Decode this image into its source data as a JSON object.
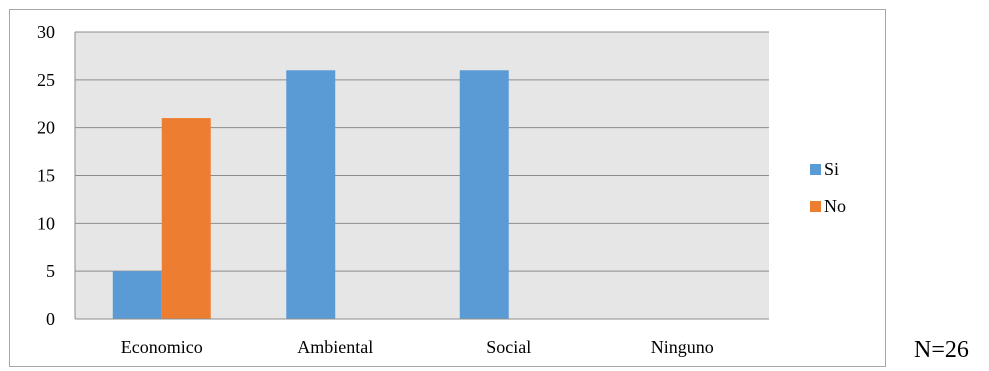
{
  "chart_data": {
    "type": "bar",
    "categories": [
      "Economico",
      "Ambiental",
      "Social",
      "Ninguno"
    ],
    "series": [
      {
        "name": "Si",
        "values": [
          5,
          26,
          26,
          0
        ],
        "color": "#5b9bd5"
      },
      {
        "name": "No",
        "values": [
          21,
          0,
          0,
          0
        ],
        "color": "#ed7d31"
      }
    ],
    "ylim": [
      0,
      30
    ],
    "yticks": [
      0,
      5,
      10,
      15,
      20,
      25,
      30
    ],
    "grid": true,
    "plot_background": "#e7e6e6",
    "legend_position": "right"
  },
  "footnote": "N=26"
}
